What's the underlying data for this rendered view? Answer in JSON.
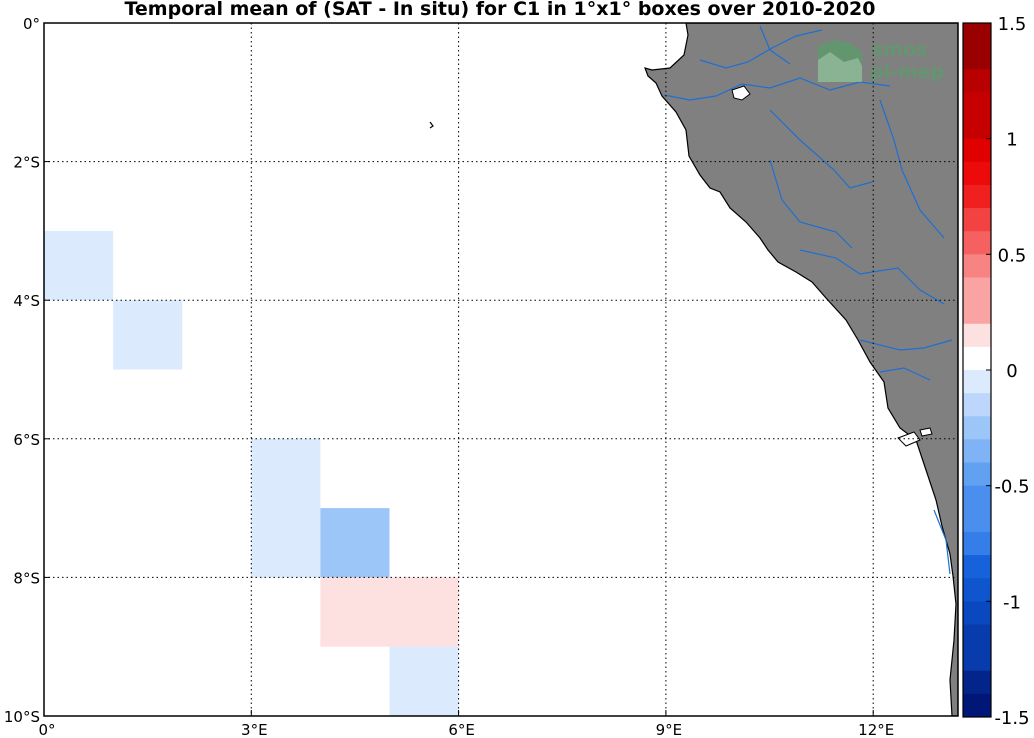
{
  "title": "Temporal mean of (SAT - In situ) for C1 in 1°x1° boxes over 2010-2020",
  "axes": {
    "lon_labels": [
      "0°",
      "3°E",
      "6°E",
      "9°E",
      "12°E"
    ],
    "lat_labels": [
      "0°",
      "2°S",
      "4°S",
      "6°S",
      "8°S",
      "10°S"
    ],
    "lon_values": [
      0,
      3,
      6,
      9,
      12
    ],
    "lat_values": [
      0,
      -2,
      -4,
      -6,
      -8,
      -10
    ]
  },
  "colorbar": {
    "ticks": [
      "1.5",
      "1",
      "0.5",
      "0",
      "-0.5",
      "-1",
      "-1.5"
    ],
    "tick_values": [
      1.5,
      1,
      0.5,
      0,
      -0.5,
      -1,
      -1.5
    ],
    "range": [
      -1.5,
      1.5
    ],
    "steps": 30,
    "colors": {
      "positive": [
        "#fde0e0",
        "#fcc4c4",
        "#f9a3a3",
        "#f78383",
        "#f56161",
        "#f24242",
        "#f02020",
        "#ec0a0a",
        "#e00000",
        "#d40000",
        "#c60000",
        "#b80000",
        "#aa0000",
        "#9b0000",
        "#8b0000"
      ],
      "zero": "#ffffff",
      "negative": [
        "#dbeafd",
        "#bcd7fb",
        "#9cc5f8",
        "#7fb3f5",
        "#62a0f2",
        "#4a8fee",
        "#357eea",
        "#2270e4",
        "#1662da",
        "#0e55ce",
        "#0a48bf",
        "#083cad",
        "#05309b",
        "#032489",
        "#001777"
      ]
    }
  },
  "map": {
    "land_color": "#808080",
    "river_color": "#1f6fd1",
    "watermark": {
      "line1": "smos",
      "line2": "pi-mep"
    }
  },
  "boxes": [
    {
      "lon": 0,
      "lat": -3,
      "value": -0.05
    },
    {
      "lon": 1,
      "lat": -4,
      "value": -0.15
    },
    {
      "lon": 3,
      "lat": -6,
      "value": -0.05
    },
    {
      "lon": 3,
      "lat": -7,
      "value": -0.15
    },
    {
      "lon": 4,
      "lat": -7,
      "value": -0.25
    },
    {
      "lon": 4,
      "lat": -8,
      "value": 0.05
    },
    {
      "lon": 5,
      "lat": -8,
      "value": 0.05
    },
    {
      "lon": 5,
      "lat": -9,
      "value": -0.05
    }
  ]
}
